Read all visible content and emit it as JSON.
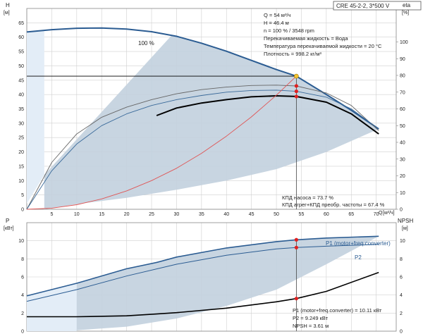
{
  "model_box": "CRE 45-2-2, 3*500 V",
  "chart_data": [
    {
      "type": "line",
      "panel": "pump-curve",
      "ylabel_left": "H",
      "yunit_left": "[м]",
      "ylabel_right": "eta",
      "yunit_right": "[%]",
      "xlabel": "Q",
      "xunit": "[м³/ч]",
      "xlim": [
        0,
        74
      ],
      "xticks": [
        0,
        5,
        10,
        15,
        20,
        25,
        30,
        35,
        40,
        45,
        50,
        55,
        60,
        65,
        70
      ],
      "ylim_left": [
        0,
        70
      ],
      "yticks_left": [
        0,
        5,
        10,
        15,
        20,
        25,
        30,
        35,
        40,
        45,
        50,
        55,
        60,
        65
      ],
      "ylim_right": [
        0,
        120
      ],
      "yticks_right": [
        0,
        10,
        20,
        30,
        40,
        50,
        60,
        70,
        80,
        90,
        100
      ],
      "curve_label": "100 %",
      "series": [
        {
          "role": "head",
          "axis": "left",
          "color": "#2b5c92",
          "x": [
            0,
            5,
            10,
            15,
            20,
            25,
            30,
            35,
            40,
            45,
            50,
            54,
            60,
            65,
            70.5
          ],
          "y": [
            61.8,
            62.6,
            63.1,
            63.2,
            62.8,
            61.9,
            60.3,
            57.9,
            55.1,
            51.9,
            48.7,
            46.4,
            40.0,
            34.5,
            28.0
          ]
        },
        {
          "role": "efficiency-pump",
          "axis": "right",
          "color": "#666666",
          "x": [
            0,
            5,
            10,
            15,
            20,
            25,
            30,
            35,
            40,
            45,
            50,
            54,
            60,
            65,
            70.5
          ],
          "y": [
            0,
            28,
            45,
            55,
            61,
            65.5,
            69,
            71.5,
            73,
            74,
            74.2,
            73.7,
            69.5,
            62,
            47
          ]
        },
        {
          "role": "efficiency-pump-second",
          "axis": "right",
          "color": "#3a6a9a",
          "x": [
            0,
            5,
            10,
            15,
            20,
            25,
            30,
            35,
            40,
            45,
            50,
            54,
            60,
            65,
            70.5
          ],
          "y": [
            0,
            23,
            39,
            50,
            57,
            62,
            65.5,
            68,
            70,
            71,
            71.2,
            70.5,
            67,
            60,
            48
          ]
        },
        {
          "role": "efficiency-total",
          "axis": "right",
          "color": "#000000",
          "x": [
            26,
            30,
            35,
            40,
            45,
            50,
            54,
            60,
            65,
            70.5
          ],
          "y": [
            56,
            60.5,
            63.5,
            65.5,
            67.2,
            67.8,
            67.4,
            64,
            57,
            45
          ]
        },
        {
          "role": "system-curve",
          "axis": "left",
          "color": "#e05555",
          "x": [
            0,
            5,
            10,
            15,
            20,
            25,
            30,
            35,
            40,
            45,
            50,
            54
          ],
          "y": [
            0,
            0.4,
            1.6,
            3.6,
            6.4,
            10.0,
            14.3,
            19.5,
            25.5,
            32.2,
            39.8,
            46.4
          ]
        }
      ],
      "operating_point": {
        "x": 54,
        "head": 46.4,
        "eta_points": [
          73.7,
          70.5,
          67.4
        ]
      },
      "reference_line_head": 46.4,
      "info_top": [
        "Q = 54 м³/ч",
        "H = 46.4 м",
        "n = 100 % / 3548 rpm",
        "Перекачиваемая жидкость = Вода",
        "Температура перекачиваемой жидкости = 20 °C",
        "Плотность = 998.2 кг/м³"
      ],
      "info_eta": [
        "КПД насоса = 73.7 %",
        "КПД агрег+КПД преобр. частоты = 67.4 %"
      ]
    },
    {
      "type": "line",
      "panel": "power-npsh",
      "ylabel_left": "P",
      "yunit_left": "[кВт]",
      "ylabel_right": "NPSH",
      "yunit_right": "[м]",
      "xlim": [
        0,
        74
      ],
      "ylim_left": [
        0,
        12
      ],
      "yticks_left": [
        0,
        2,
        4,
        6,
        8,
        10
      ],
      "ylim_right": [
        0,
        12
      ],
      "yticks_right": [
        0,
        2,
        4,
        6,
        8,
        10
      ],
      "series": [
        {
          "name": "P1 (motor+freq.converter)",
          "axis": "left",
          "color": "#2b5c92",
          "x": [
            0,
            10,
            20,
            26,
            30,
            40,
            50,
            54,
            60,
            70.5
          ],
          "y": [
            3.9,
            5.3,
            6.9,
            7.6,
            8.2,
            9.2,
            9.9,
            10.11,
            10.3,
            10.5
          ]
        },
        {
          "name": "P2",
          "axis": "left",
          "color": "#2b5c92",
          "x": [
            0,
            10,
            20,
            30,
            40,
            50,
            54,
            60,
            70.5
          ],
          "y": [
            3.3,
            4.6,
            6.1,
            7.4,
            8.4,
            9.1,
            9.249,
            9.4,
            9.6
          ]
        },
        {
          "role": "npsh",
          "axis": "right",
          "color": "#000000",
          "x": [
            0,
            10,
            20,
            26,
            30,
            40,
            50,
            54,
            60,
            70.5
          ],
          "y": [
            1.6,
            1.6,
            1.7,
            1.9,
            2.05,
            2.55,
            3.25,
            3.61,
            4.4,
            6.5
          ]
        }
      ],
      "operating_points": [
        10.11,
        9.249,
        3.61
      ],
      "info_bottom": [
        "P1 (motor+freq.converter) = 10.11 кВт",
        "P2 = 9.249 кВт",
        "NPSH = 3.61 м"
      ]
    }
  ]
}
